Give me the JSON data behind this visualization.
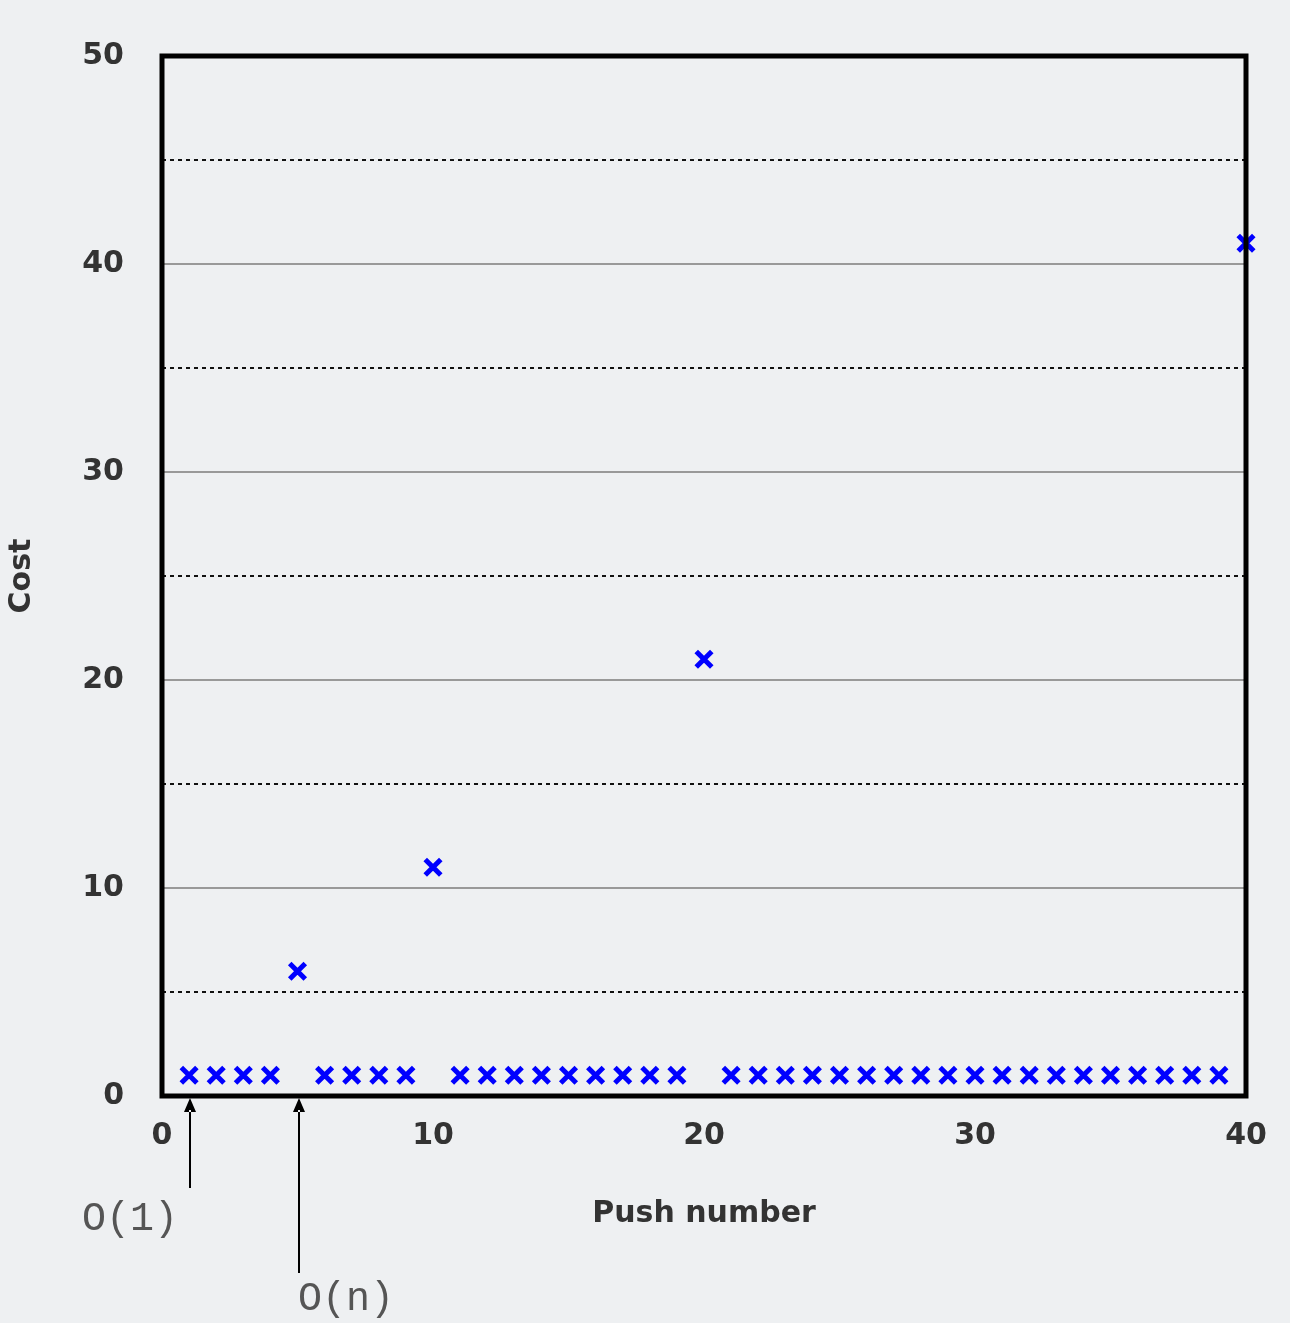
{
  "chart_data": {
    "type": "scatter",
    "xlabel": "Push number",
    "ylabel": "Cost",
    "x": [
      1,
      2,
      3,
      4,
      5,
      6,
      7,
      8,
      9,
      10,
      11,
      12,
      13,
      14,
      15,
      16,
      17,
      18,
      19,
      20,
      21,
      22,
      23,
      24,
      25,
      26,
      27,
      28,
      29,
      30,
      31,
      32,
      33,
      34,
      35,
      36,
      37,
      38,
      39,
      40
    ],
    "series": [
      {
        "color": "#0000ff",
        "values": [
          1,
          1,
          1,
          1,
          6,
          1,
          1,
          1,
          1,
          11,
          1,
          1,
          1,
          1,
          1,
          1,
          1,
          1,
          1,
          21,
          1,
          1,
          1,
          1,
          1,
          1,
          1,
          1,
          1,
          1,
          1,
          1,
          1,
          1,
          1,
          1,
          1,
          1,
          1,
          41
        ]
      }
    ],
    "xlim": [
      0,
      40
    ],
    "xticks": [
      0,
      10,
      20,
      30,
      40
    ],
    "ylim": [
      0,
      50
    ],
    "yticks": [
      0,
      {
        "value": 5,
        "label": null
      },
      10,
      {
        "value": 15,
        "label": null
      },
      20,
      {
        "value": 25,
        "label": null
      },
      30,
      {
        "value": 35,
        "label": null
      },
      40,
      {
        "value": 45,
        "label": null
      },
      50
    ],
    "grid": "y",
    "marker": "cross",
    "annotations": [
      "O(1)",
      "O(n)"
    ]
  }
}
